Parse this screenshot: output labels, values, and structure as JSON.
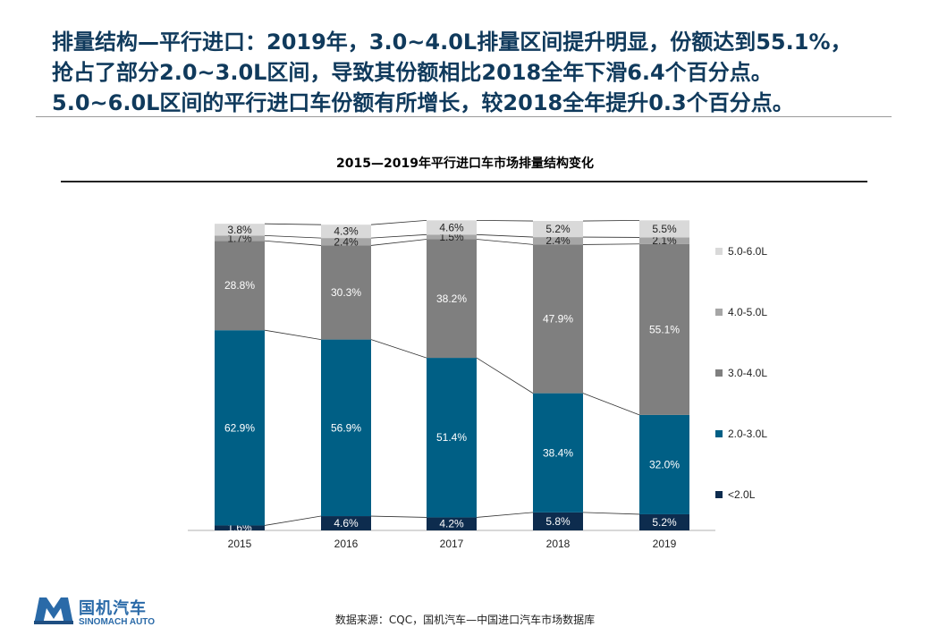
{
  "headline": {
    "line1": "排量结构—平行进口：2019年，3.0~4.0L排量区间提升明显，份额达到55.1%，",
    "line2": "抢占了部分2.0~3.0L区间，导致其份额相比2018全年下滑6.4个百分点。",
    "line3": "5.0~6.0L区间的平行进口车份额有所增长，较2018全年提升0.3个百分点。"
  },
  "chart_data": {
    "type": "bar",
    "stacked": true,
    "percent": true,
    "title": "2015—2019年平行进口车市场排量结构变化",
    "categories": [
      "2015",
      "2016",
      "2017",
      "2018",
      "2019"
    ],
    "series": [
      {
        "name": "<2.0L",
        "color": "#0d2c4e",
        "values": [
          1.6,
          4.6,
          4.2,
          5.8,
          5.2
        ],
        "labels": [
          "1.6%",
          "4.6%",
          "4.2%",
          "5.8%",
          "5.2%"
        ]
      },
      {
        "name": "2.0-3.0L",
        "color": "#005f85",
        "values": [
          62.9,
          56.9,
          51.4,
          38.4,
          32.0
        ],
        "labels": [
          "62.9%",
          "56.9%",
          "51.4%",
          "38.4%",
          "32.0%"
        ]
      },
      {
        "name": "3.0-4.0L",
        "color": "#7f7f7f",
        "values": [
          28.8,
          30.3,
          38.2,
          47.9,
          55.1
        ],
        "labels": [
          "28.8%",
          "30.3%",
          "38.2%",
          "47.9%",
          "55.1%"
        ]
      },
      {
        "name": "4.0-5.0L",
        "color": "#a6a6a6",
        "values": [
          1.7,
          2.4,
          1.5,
          2.4,
          2.1
        ],
        "labels": [
          "1.7%",
          "2.4%",
          "1.5%",
          "2.4%",
          "2.1%"
        ]
      },
      {
        "name": "5.0-6.0L",
        "color": "#d9d9d9",
        "values": [
          3.8,
          4.3,
          4.6,
          5.2,
          5.5
        ],
        "labels": [
          "3.8%",
          "4.3%",
          "4.6%",
          "5.2%",
          "5.5%"
        ]
      }
    ],
    "legend_position": "right",
    "legend_order": [
      "5.0-6.0L",
      "4.0-5.0L",
      "3.0-4.0L",
      "2.0-3.0L",
      "<2.0L"
    ],
    "grid": false,
    "ylim": [
      0,
      100
    ]
  },
  "footer": {
    "source": "数据来源：CQC，国机汽车—中国进口汽车市场数据库",
    "logo_cn": "国机汽车",
    "logo_en": "SINOMACH AUTO"
  },
  "colors": {
    "headline": "#103a5c",
    "logo": "#2a6aa8"
  }
}
